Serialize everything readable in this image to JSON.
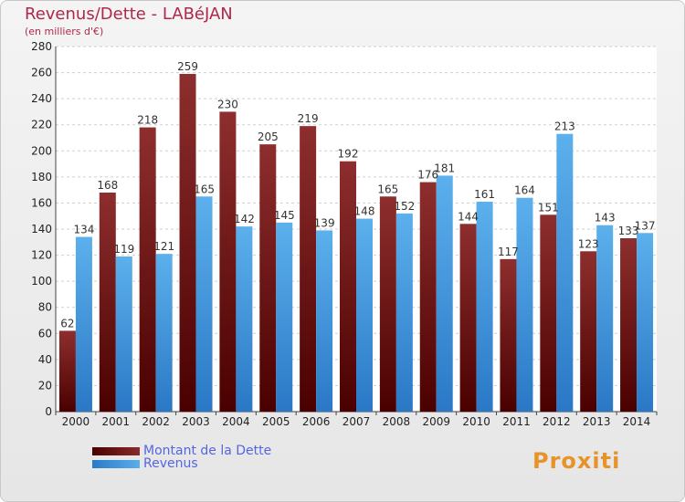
{
  "header": {
    "title": "Revenus/Dette - LABéJAN",
    "subtitle": "(en milliers d'€)"
  },
  "legend": {
    "dette_label": "Montant de la Dette",
    "revenus_label": "Revenus"
  },
  "logo": {
    "text": "Proxiti"
  },
  "colors": {
    "dette_dark": "#4a0000",
    "dette_light": "#8e2e2e",
    "revenus_dark": "#2a78c6",
    "revenus_light": "#5cb0ec",
    "title": "#b0284a",
    "legend_text": "#5566dd"
  },
  "chart_data": {
    "type": "bar",
    "title": "Revenus/Dette - LABéJAN",
    "ylabel": "(en milliers d'€)",
    "xlabel": "",
    "ylim": [
      0,
      280
    ],
    "yticks": [
      0,
      20,
      40,
      60,
      80,
      100,
      120,
      140,
      160,
      180,
      200,
      220,
      240,
      260,
      280
    ],
    "grid": true,
    "categories": [
      "2000",
      "2001",
      "2002",
      "2003",
      "2004",
      "2005",
      "2006",
      "2007",
      "2008",
      "2009",
      "2010",
      "2011",
      "2012",
      "2013",
      "2014"
    ],
    "series": [
      {
        "name": "Montant de la Dette",
        "values": [
          62,
          168,
          218,
          259,
          230,
          205,
          219,
          192,
          165,
          176,
          144,
          117,
          151,
          123,
          133
        ]
      },
      {
        "name": "Revenus",
        "values": [
          134,
          119,
          121,
          165,
          142,
          145,
          139,
          148,
          152,
          181,
          161,
          164,
          213,
          143,
          137
        ]
      }
    ]
  }
}
